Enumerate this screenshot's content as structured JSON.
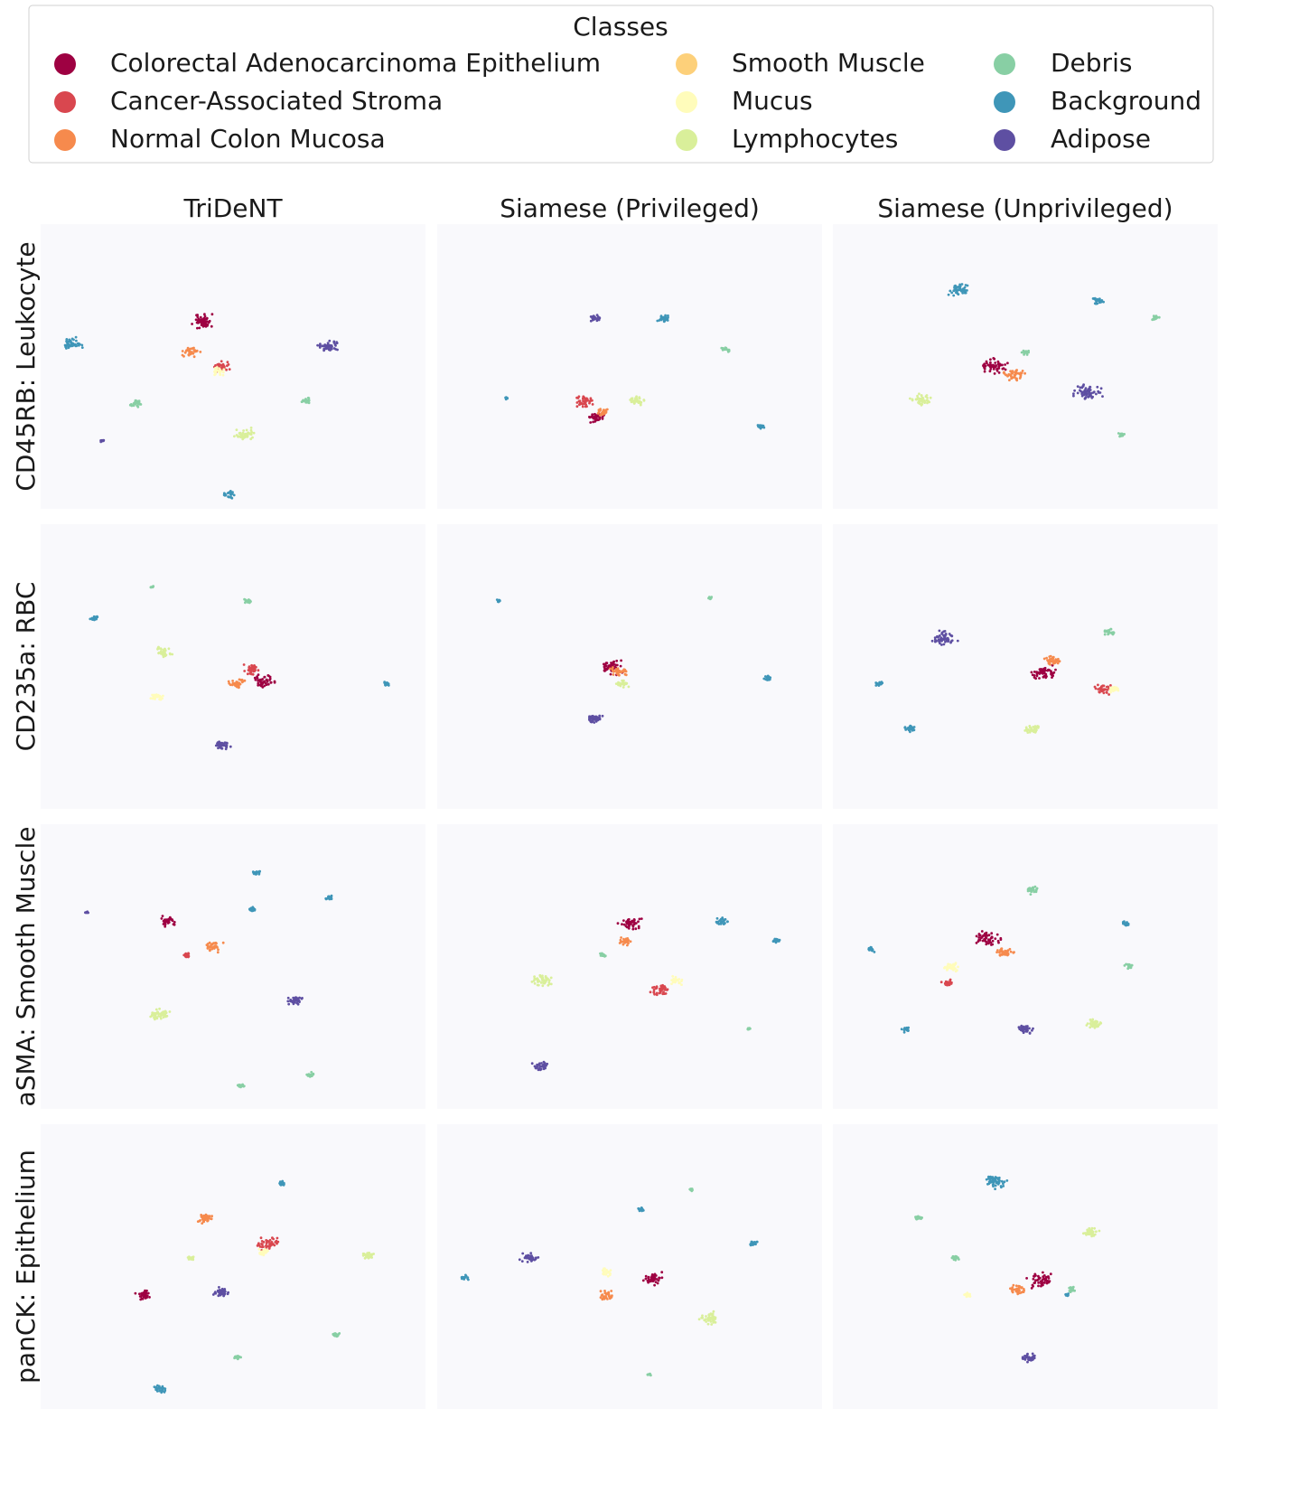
{
  "legend": {
    "title": "Classes",
    "classes": [
      {
        "label": "Colorectal Adenocarcinoma Epithelium",
        "color": "#9e0142"
      },
      {
        "label": "Cancer-Associated Stroma",
        "color": "#d9474f"
      },
      {
        "label": "Normal Colon Mucosa",
        "color": "#f68a4d"
      },
      {
        "label": "Smooth Muscle",
        "color": "#fdd07a"
      },
      {
        "label": "Mucus",
        "color": "#fffcbb"
      },
      {
        "label": "Lymphocytes",
        "color": "#d9ef9a"
      },
      {
        "label": "Debris",
        "color": "#88cfa4"
      },
      {
        "label": "Background",
        "color": "#3f96b8"
      },
      {
        "label": "Adipose",
        "color": "#5e4fa2"
      }
    ]
  },
  "columns": [
    "TriDeNT",
    "Siamese (Privileged)",
    "Siamese (Unprivileged)"
  ],
  "rows": [
    "CD45RB: Leukocyte",
    "CD235a: RBC",
    "aSMA: Smooth Muscle",
    "panCK: Epithelium"
  ]
}
